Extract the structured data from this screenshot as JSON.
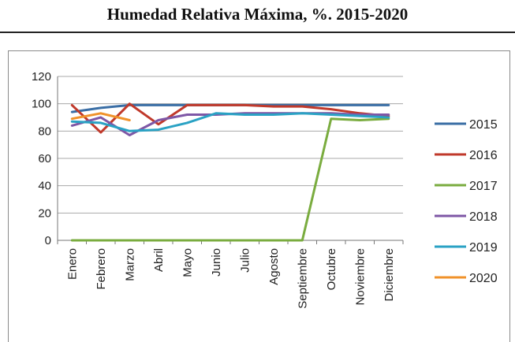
{
  "page": {
    "title": "Humedad Relativa Máxima, %. 2015-2020"
  },
  "chart_data": {
    "type": "line",
    "title": "",
    "xlabel": "",
    "ylabel": "",
    "categories": [
      "Enero",
      "Febrero",
      "Marzo",
      "Abril",
      "Mayo",
      "Junio",
      "Julio",
      "Agosto",
      "Septiembre",
      "Octubre",
      "Noviembre",
      "Diciembre"
    ],
    "ylim": [
      0,
      120
    ],
    "yticks": [
      0,
      20,
      40,
      60,
      80,
      100,
      120
    ],
    "grid": true,
    "legend_position": "right",
    "series": [
      {
        "name": "2015",
        "color": "#3a6ea5",
        "values": [
          94,
          97,
          99,
          99,
          99,
          99,
          99,
          99,
          99,
          99,
          99,
          99
        ]
      },
      {
        "name": "2016",
        "color": "#c0392b",
        "values": [
          99,
          79,
          100,
          85,
          99,
          99,
          99,
          98,
          98,
          96,
          93,
          91
        ]
      },
      {
        "name": "2017",
        "color": "#7aac3f",
        "values": [
          0,
          0,
          0,
          0,
          0,
          0,
          0,
          0,
          0,
          89,
          88,
          89
        ]
      },
      {
        "name": "2018",
        "color": "#7e57a6",
        "values": [
          84,
          90,
          77,
          88,
          92,
          92,
          93,
          93,
          93,
          93,
          92,
          92
        ]
      },
      {
        "name": "2019",
        "color": "#2aa2c4",
        "values": [
          87,
          86,
          80,
          81,
          86,
          93,
          92,
          92,
          93,
          92,
          91,
          90
        ]
      },
      {
        "name": "2020",
        "color": "#f0922a",
        "values": [
          89,
          93,
          88,
          null,
          null,
          null,
          null,
          null,
          null,
          null,
          null,
          null
        ]
      }
    ]
  }
}
